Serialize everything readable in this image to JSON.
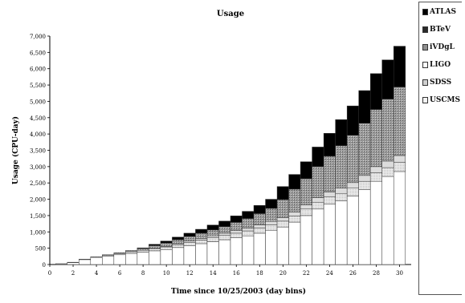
{
  "chart_data": {
    "type": "bar",
    "stacked": true,
    "title": "Usage",
    "xlabel": "Time since 10/25/2003 (day bins)",
    "ylabel": "Usage (CPU-day)",
    "xlim": [
      0,
      31
    ],
    "ylim": [
      0,
      7000
    ],
    "x_ticks": [
      0,
      2,
      4,
      6,
      8,
      10,
      12,
      14,
      16,
      18,
      20,
      22,
      24,
      26,
      28,
      30
    ],
    "y_ticks": [
      "0",
      "500",
      "1,000",
      "1,500",
      "2,000",
      "2,500",
      "3,000",
      "3,500",
      "4,000",
      "4,500",
      "5,000",
      "5,500",
      "6,000",
      "6,500",
      "7,000"
    ],
    "legend_position": "right",
    "x": [
      1,
      2,
      3,
      4,
      5,
      6,
      7,
      8,
      9,
      10,
      11,
      12,
      13,
      14,
      15,
      16,
      17,
      18,
      19,
      20,
      21,
      22,
      23,
      24,
      25,
      26,
      27,
      28,
      29,
      30
    ],
    "series": [
      {
        "name": "USCMS",
        "color": "#ffffff",
        "values": [
          20,
          60,
          150,
          220,
          260,
          300,
          340,
          380,
          420,
          460,
          520,
          580,
          640,
          700,
          760,
          820,
          880,
          960,
          1050,
          1150,
          1300,
          1500,
          1700,
          1850,
          1950,
          2100,
          2300,
          2550,
          2700,
          2850
        ]
      },
      {
        "name": "SDSS",
        "color": "#e6e6e6",
        "values": [
          5,
          10,
          15,
          20,
          30,
          40,
          50,
          60,
          70,
          80,
          90,
          100,
          110,
          120,
          130,
          140,
          150,
          160,
          170,
          180,
          190,
          200,
          210,
          220,
          230,
          240,
          250,
          260,
          270,
          280
        ]
      },
      {
        "name": "LIGO",
        "color": "#cfcfcf",
        "values": [
          0,
          0,
          0,
          0,
          0,
          0,
          0,
          0,
          10,
          20,
          30,
          40,
          50,
          60,
          70,
          80,
          80,
          90,
          100,
          110,
          120,
          130,
          140,
          150,
          160,
          170,
          180,
          190,
          200,
          210
        ]
      },
      {
        "name": "iVDgL",
        "color": "#8f8f8f",
        "values": [
          0,
          0,
          0,
          0,
          10,
          20,
          40,
          50,
          80,
          100,
          120,
          140,
          160,
          180,
          200,
          250,
          300,
          350,
          400,
          550,
          700,
          800,
          950,
          1100,
          1300,
          1450,
          1600,
          1750,
          1900,
          2100
        ]
      },
      {
        "name": "BTeV",
        "color": "#2a2a2a",
        "values": [
          0,
          0,
          0,
          0,
          0,
          0,
          0,
          0,
          0,
          0,
          0,
          0,
          0,
          0,
          0,
          0,
          0,
          0,
          0,
          0,
          0,
          0,
          0,
          0,
          0,
          0,
          0,
          0,
          0,
          0
        ]
      },
      {
        "name": "ATLAS",
        "color": "#000000",
        "values": [
          0,
          0,
          0,
          0,
          0,
          0,
          0,
          20,
          40,
          60,
          80,
          100,
          120,
          150,
          170,
          200,
          220,
          250,
          280,
          400,
          450,
          520,
          600,
          700,
          800,
          900,
          1000,
          1100,
          1200,
          1250
        ]
      }
    ]
  },
  "legend_labels": [
    "ATLAS",
    "BTeV",
    "iVDgL",
    "LIGO",
    "SDSS",
    "USCMS"
  ]
}
